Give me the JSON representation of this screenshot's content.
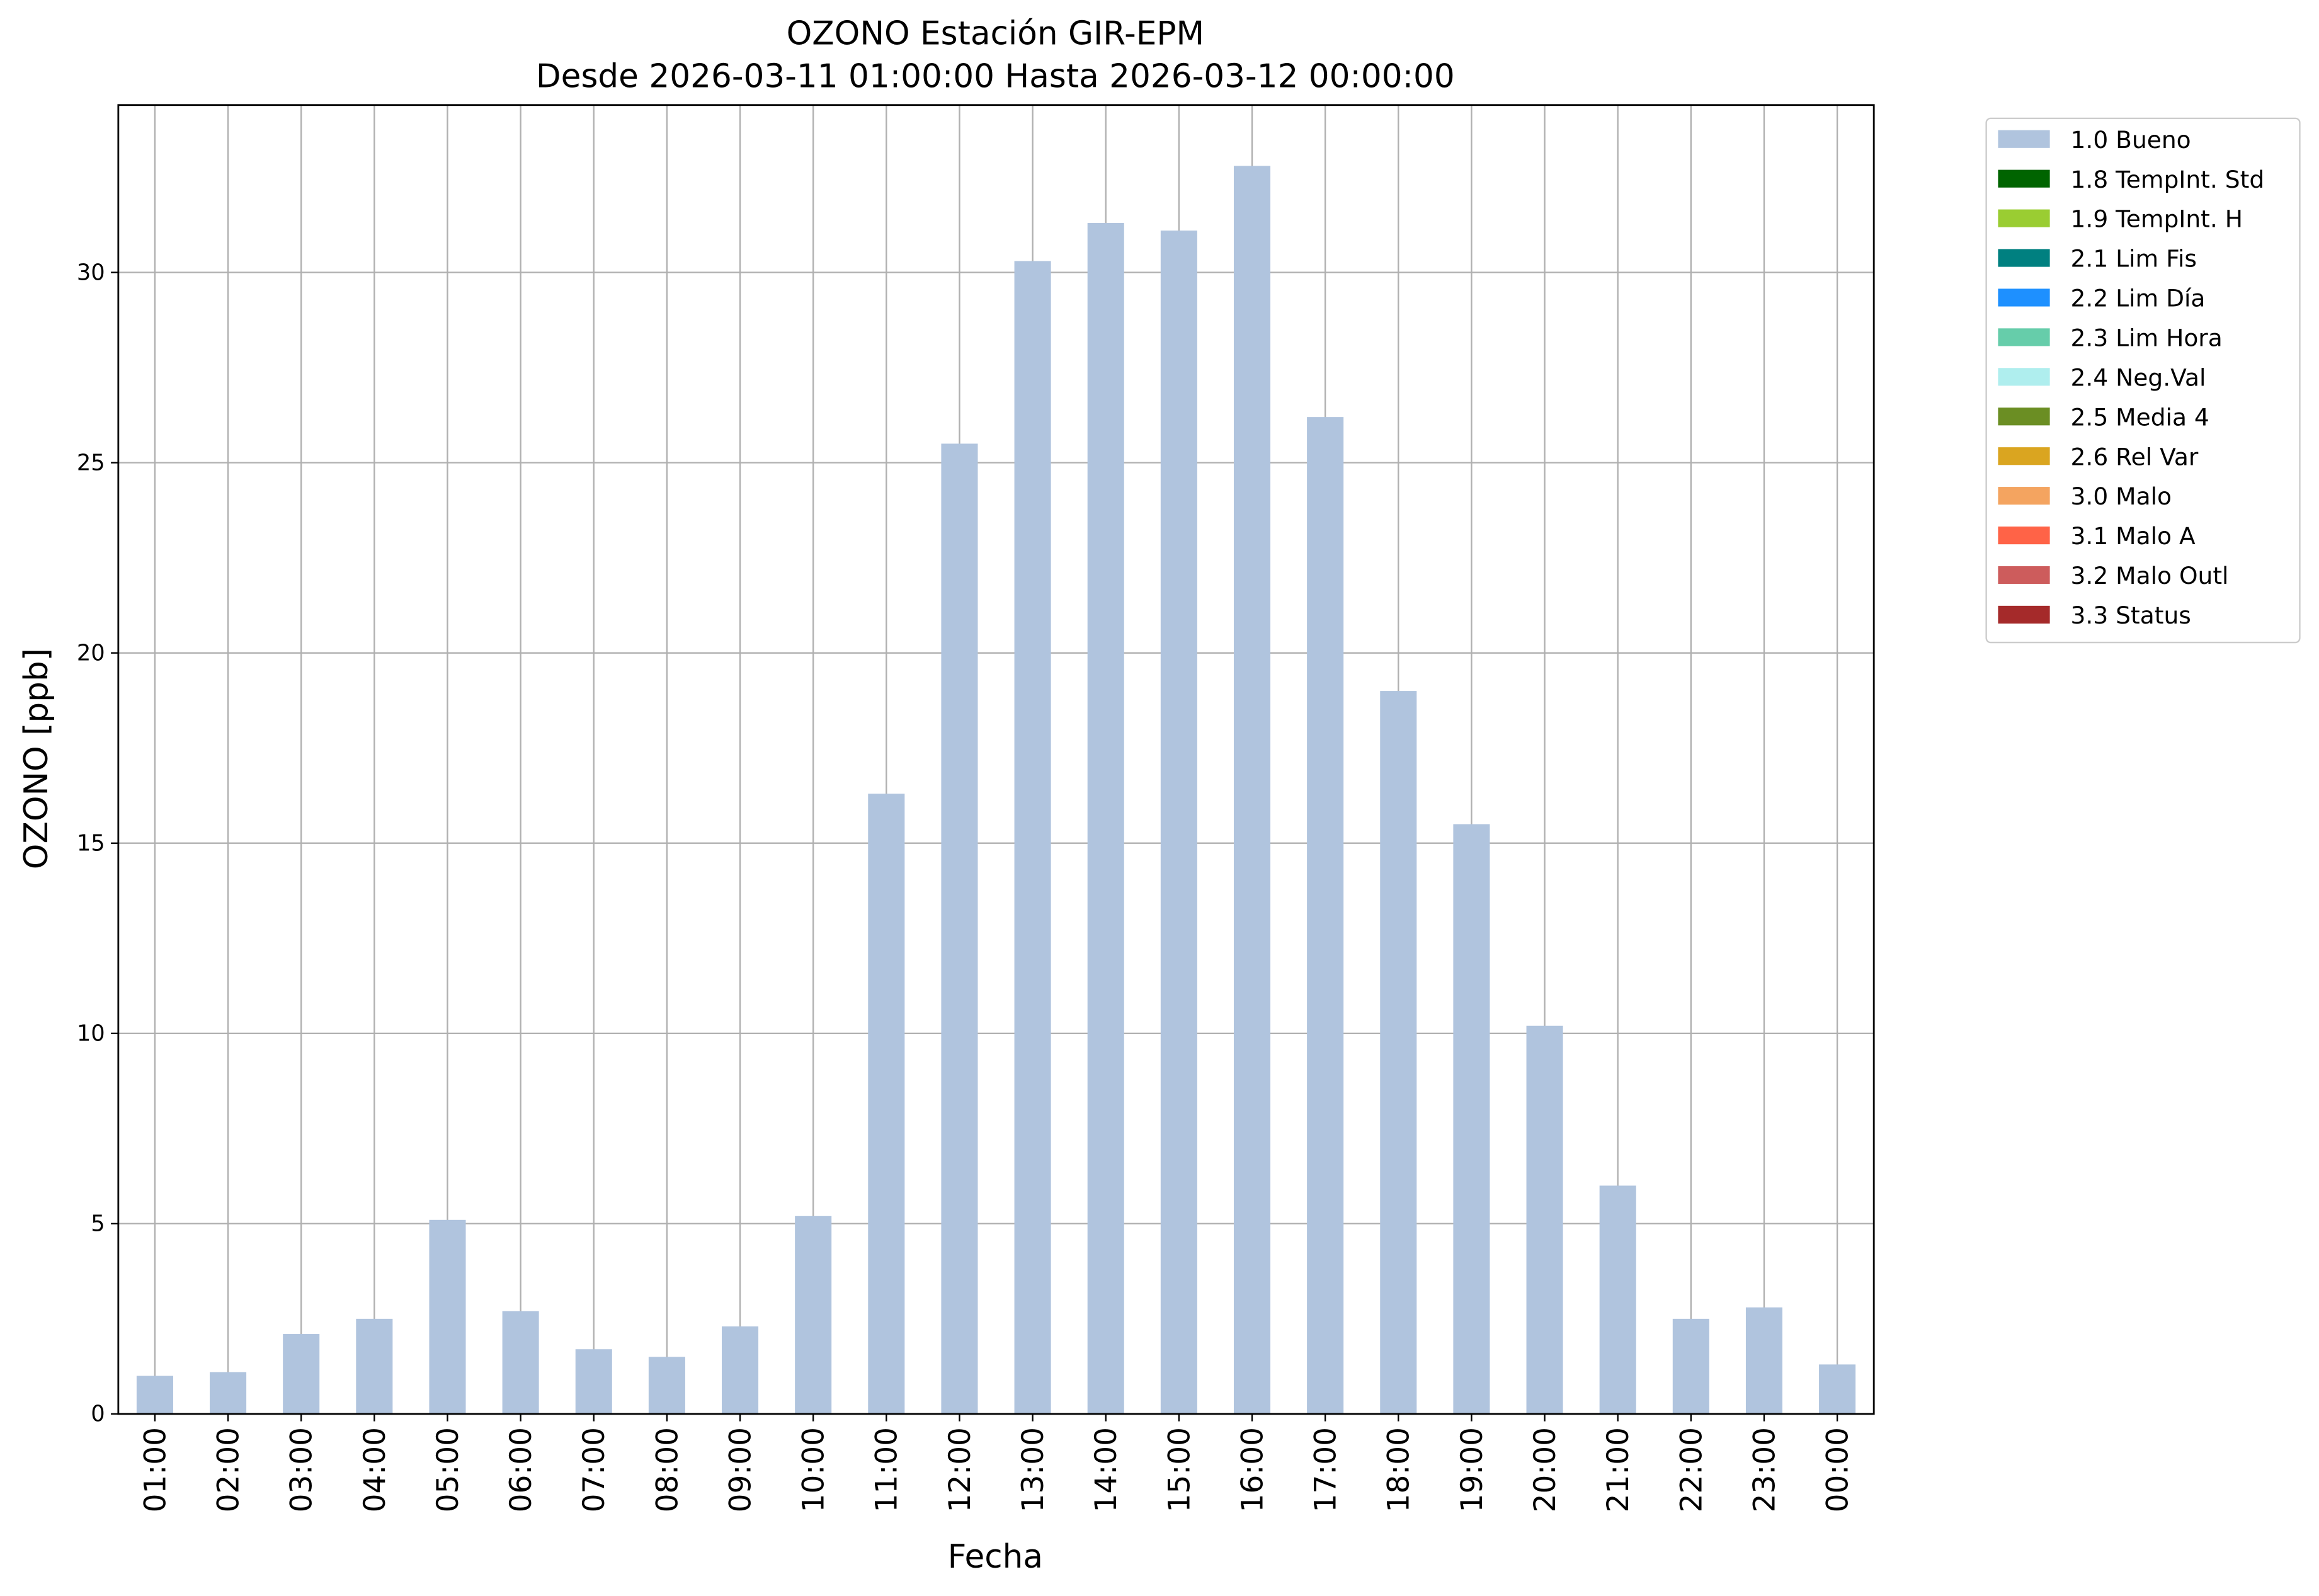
{
  "chart_data": {
    "type": "bar",
    "title": "OZONO Estación GIR-EPM",
    "subtitle": "Desde 2026-03-11 01:00:00 Hasta 2026-03-12 00:00:00",
    "x_label": "Fecha",
    "y_label": "OZONO [ppb]",
    "categories": [
      "01:00",
      "02:00",
      "03:00",
      "04:00",
      "05:00",
      "06:00",
      "07:00",
      "08:00",
      "09:00",
      "10:00",
      "11:00",
      "12:00",
      "13:00",
      "14:00",
      "15:00",
      "16:00",
      "17:00",
      "18:00",
      "19:00",
      "20:00",
      "21:00",
      "22:00",
      "23:00",
      "00:00"
    ],
    "series": [
      {
        "name": "1.0 Bueno",
        "color": "#b0c4de",
        "values": [
          1.0,
          1.1,
          2.1,
          2.5,
          5.1,
          2.7,
          1.7,
          1.5,
          2.3,
          5.2,
          16.3,
          25.5,
          30.3,
          31.3,
          31.1,
          32.8,
          26.2,
          19.0,
          15.5,
          10.2,
          6.0,
          2.5,
          2.8,
          1.3
        ]
      },
      {
        "name": "1.8 TempInt. Std",
        "color": "#006400",
        "values": [
          null,
          null,
          null,
          null,
          null,
          null,
          null,
          null,
          null,
          null,
          null,
          null,
          null,
          null,
          null,
          null,
          null,
          null,
          null,
          null,
          null,
          null,
          null,
          null
        ]
      },
      {
        "name": "1.9 TempInt. H",
        "color": "#9acd32",
        "values": [
          null,
          null,
          null,
          null,
          null,
          null,
          null,
          null,
          null,
          null,
          null,
          null,
          null,
          null,
          null,
          null,
          null,
          null,
          null,
          null,
          null,
          null,
          null,
          null
        ]
      },
      {
        "name": "2.1 Lim Fis",
        "color": "#008080",
        "values": [
          null,
          null,
          null,
          null,
          null,
          null,
          null,
          null,
          null,
          null,
          null,
          null,
          null,
          null,
          null,
          null,
          null,
          null,
          null,
          null,
          null,
          null,
          null,
          null
        ]
      },
      {
        "name": "2.2 Lim Día",
        "color": "#1e90ff",
        "values": [
          null,
          null,
          null,
          null,
          null,
          null,
          null,
          null,
          null,
          null,
          null,
          null,
          null,
          null,
          null,
          null,
          null,
          null,
          null,
          null,
          null,
          null,
          null,
          null
        ]
      },
      {
        "name": "2.3 Lim Hora",
        "color": "#66cdaa",
        "values": [
          null,
          null,
          null,
          null,
          null,
          null,
          null,
          null,
          null,
          null,
          null,
          null,
          null,
          null,
          null,
          null,
          null,
          null,
          null,
          null,
          null,
          null,
          null,
          null
        ]
      },
      {
        "name": "2.4 Neg.Val",
        "color": "#afeeee",
        "values": [
          null,
          null,
          null,
          null,
          null,
          null,
          null,
          null,
          null,
          null,
          null,
          null,
          null,
          null,
          null,
          null,
          null,
          null,
          null,
          null,
          null,
          null,
          null,
          null
        ]
      },
      {
        "name": "2.5 Media 4",
        "color": "#6b8e23",
        "values": [
          null,
          null,
          null,
          null,
          null,
          null,
          null,
          null,
          null,
          null,
          null,
          null,
          null,
          null,
          null,
          null,
          null,
          null,
          null,
          null,
          null,
          null,
          null,
          null
        ]
      },
      {
        "name": "2.6 Rel Var",
        "color": "#daa520",
        "values": [
          null,
          null,
          null,
          null,
          null,
          null,
          null,
          null,
          null,
          null,
          null,
          null,
          null,
          null,
          null,
          null,
          null,
          null,
          null,
          null,
          null,
          null,
          null,
          null
        ]
      },
      {
        "name": "3.0 Malo",
        "color": "#f4a460",
        "values": [
          null,
          null,
          null,
          null,
          null,
          null,
          null,
          null,
          null,
          null,
          null,
          null,
          null,
          null,
          null,
          null,
          null,
          null,
          null,
          null,
          null,
          null,
          null,
          null
        ]
      },
      {
        "name": "3.1 Malo A",
        "color": "#ff6347",
        "values": [
          null,
          null,
          null,
          null,
          null,
          null,
          null,
          null,
          null,
          null,
          null,
          null,
          null,
          null,
          null,
          null,
          null,
          null,
          null,
          null,
          null,
          null,
          null,
          null
        ]
      },
      {
        "name": "3.2 Malo Outl",
        "color": "#cd5c5c",
        "values": [
          null,
          null,
          null,
          null,
          null,
          null,
          null,
          null,
          null,
          null,
          null,
          null,
          null,
          null,
          null,
          null,
          null,
          null,
          null,
          null,
          null,
          null,
          null,
          null
        ]
      },
      {
        "name": "3.3 Status",
        "color": "#a52a2a",
        "values": [
          null,
          null,
          null,
          null,
          null,
          null,
          null,
          null,
          null,
          null,
          null,
          null,
          null,
          null,
          null,
          null,
          null,
          null,
          null,
          null,
          null,
          null,
          null,
          null
        ]
      }
    ],
    "ylim": [
      0,
      34.4
    ],
    "yticks": [
      0,
      5,
      10,
      15,
      20,
      25,
      30
    ],
    "grid": true,
    "legend": "outside-upper-right"
  }
}
